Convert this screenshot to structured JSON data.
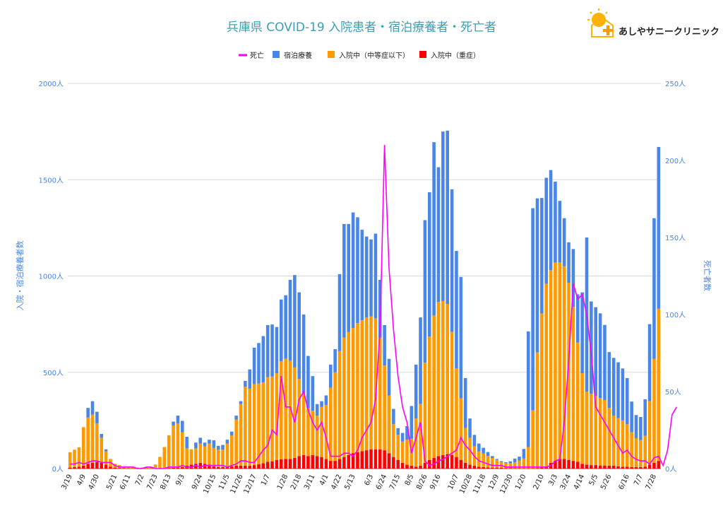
{
  "brand": {
    "name": "あしやサニークリニック"
  },
  "chart_data": {
    "type": "bar",
    "title": "兵庫県 COVID-19 入院患者・宿泊療養者・死亡者",
    "y_left_label": "入院・宿泊療養者数",
    "y_right_label": "死亡者数",
    "y_left_ticks": [
      "0人",
      "500人",
      "1000人",
      "1500人",
      "2000人"
    ],
    "y_right_ticks": [
      "0人",
      "50人",
      "100人",
      "150人",
      "200人",
      "250人"
    ],
    "y_left_range": [
      0,
      2000
    ],
    "y_right_range": [
      0,
      250
    ],
    "x_tick_labels": [
      "3/19",
      "4/9",
      "4/30",
      "5/21",
      "6/11",
      "7/2",
      "7/23",
      "8/13",
      "9/3",
      "9/24",
      "10/15",
      "11/5",
      "11/26",
      "12/17",
      "1/7",
      "1/28",
      "2/18",
      "3/11",
      "4/1",
      "4/22",
      "5/13",
      "6/3",
      "6/24",
      "7/15",
      "8/5",
      "8/26",
      "9/16",
      "10/7",
      "10/28",
      "11/18",
      "12/9",
      "12/30",
      "1/20",
      "2/10",
      "3/3",
      "3/24",
      "4/14",
      "5/5",
      "5/26",
      "6/16",
      "7/7",
      "7/28"
    ],
    "legend": [
      {
        "name": "死亡",
        "color": "#ff00ff",
        "kind": "line"
      },
      {
        "name": "宿泊療養",
        "color": "#4a86e8",
        "kind": "box"
      },
      {
        "name": "入院中（中等症以下）",
        "color": "#ff9900",
        "kind": "box"
      },
      {
        "name": "入院中（重症）",
        "color": "#ff0000",
        "kind": "box"
      }
    ],
    "series": [
      {
        "name": "入院中（重症）",
        "values": [
          5,
          8,
          10,
          15,
          25,
          30,
          35,
          30,
          20,
          10,
          5,
          3,
          2,
          1,
          1,
          1,
          1,
          1,
          1,
          1,
          1,
          2,
          3,
          4,
          5,
          8,
          15,
          20,
          25,
          30,
          25,
          20,
          12,
          8,
          8,
          10,
          12,
          15,
          15,
          15,
          15,
          18,
          22,
          28,
          35,
          38,
          45,
          48,
          50,
          50,
          55,
          65,
          70,
          65,
          70,
          65,
          60,
          50,
          40,
          40,
          50,
          60,
          70,
          80,
          85,
          90,
          95,
          100,
          100,
          100,
          95,
          80,
          60,
          45,
          30,
          20,
          15,
          10,
          15,
          30,
          45,
          55,
          65,
          70,
          75,
          70,
          60,
          45,
          30,
          20,
          15,
          10,
          8,
          6,
          5,
          5,
          4,
          3,
          3,
          2,
          2,
          2,
          2,
          2,
          3,
          5,
          10,
          30,
          40,
          50,
          50,
          45,
          40,
          35,
          25,
          20,
          18,
          18,
          16,
          16,
          15,
          15,
          12,
          10,
          10,
          8,
          8,
          8,
          10,
          20,
          30,
          40
        ]
      },
      {
        "name": "入院中（中等症以下）",
        "values": [
          80,
          90,
          100,
          200,
          240,
          250,
          200,
          130,
          70,
          40,
          20,
          15,
          10,
          8,
          6,
          5,
          5,
          5,
          5,
          20,
          60,
          110,
          170,
          220,
          230,
          180,
          90,
          80,
          80,
          100,
          90,
          110,
          95,
          90,
          90,
          120,
          160,
          240,
          320,
          410,
          400,
          420,
          420,
          420,
          440,
          440,
          450,
          510,
          520,
          510,
          470,
          400,
          320,
          250,
          230,
          210,
          260,
          280,
          380,
          460,
          560,
          620,
          640,
          650,
          670,
          680,
          690,
          690,
          680,
          580,
          440,
          300,
          170,
          130,
          110,
          130,
          140,
          250,
          320,
          520,
          640,
          740,
          800,
          800,
          780,
          640,
          460,
          320,
          180,
          140,
          100,
          80,
          70,
          60,
          50,
          40,
          30,
          25,
          25,
          30,
          40,
          50,
          110,
          300,
          600,
          800,
          950,
          1000,
          1030,
          1020,
          1000,
          920,
          800,
          620,
          470,
          380,
          370,
          360,
          350,
          340,
          300,
          260,
          250,
          240,
          220,
          180,
          150,
          140,
          160,
          330,
          540,
          790,
          950,
          1010
        ]
      },
      {
        "name": "宿泊療養",
        "values": [
          0,
          0,
          0,
          0,
          50,
          70,
          60,
          20,
          10,
          0,
          0,
          0,
          0,
          0,
          0,
          0,
          0,
          0,
          0,
          0,
          0,
          0,
          0,
          20,
          40,
          60,
          60,
          0,
          30,
          30,
          20,
          20,
          40,
          20,
          25,
          20,
          20,
          20,
          15,
          30,
          100,
          190,
          210,
          240,
          270,
          270,
          240,
          320,
          330,
          420,
          480,
          450,
          410,
          270,
          180,
          60,
          30,
          50,
          120,
          120,
          400,
          590,
          560,
          600,
          550,
          470,
          420,
          400,
          440,
          300,
          210,
          190,
          80,
          35,
          45,
          70,
          170,
          280,
          450,
          740,
          750,
          900,
          700,
          880,
          900,
          740,
          610,
          630,
          260,
          100,
          60,
          40,
          30,
          20,
          10,
          5,
          5,
          5,
          10,
          20,
          20,
          50,
          600,
          1050,
          800,
          600,
          550,
          520,
          420,
          320,
          250,
          210,
          300,
          250,
          420,
          800,
          480,
          460,
          440,
          390,
          290,
          300,
          290,
          270,
          240,
          160,
          120,
          120,
          190,
          400,
          730,
          840,
          720,
          720
        ]
      },
      {
        "name": "死亡",
        "axis": "right",
        "values": [
          3,
          3,
          4,
          3,
          4,
          5,
          5,
          4,
          4,
          4,
          2,
          1,
          1,
          1,
          1,
          0,
          0,
          1,
          1,
          0,
          0,
          0,
          1,
          1,
          1,
          2,
          1,
          1,
          2,
          1,
          2,
          2,
          2,
          2,
          2,
          1,
          2,
          3,
          5,
          5,
          4,
          4,
          8,
          12,
          15,
          25,
          22,
          60,
          40,
          40,
          30,
          45,
          50,
          38,
          30,
          25,
          30,
          20,
          8,
          8,
          8,
          10,
          10,
          8,
          12,
          20,
          25,
          30,
          45,
          90,
          210,
          130,
          90,
          60,
          40,
          30,
          10,
          20,
          30,
          5,
          2,
          3,
          5,
          6,
          8,
          10,
          12,
          20,
          15,
          12,
          8,
          5,
          4,
          3,
          2,
          2,
          2,
          1,
          1,
          1,
          1,
          1,
          1,
          1,
          1,
          1,
          1,
          2,
          5,
          6,
          30,
          70,
          120,
          110,
          113,
          100,
          75,
          40,
          35,
          30,
          25,
          20,
          15,
          10,
          12,
          8,
          6,
          5,
          5,
          3,
          7,
          8,
          2,
          12,
          35,
          40
        ]
      }
    ]
  }
}
